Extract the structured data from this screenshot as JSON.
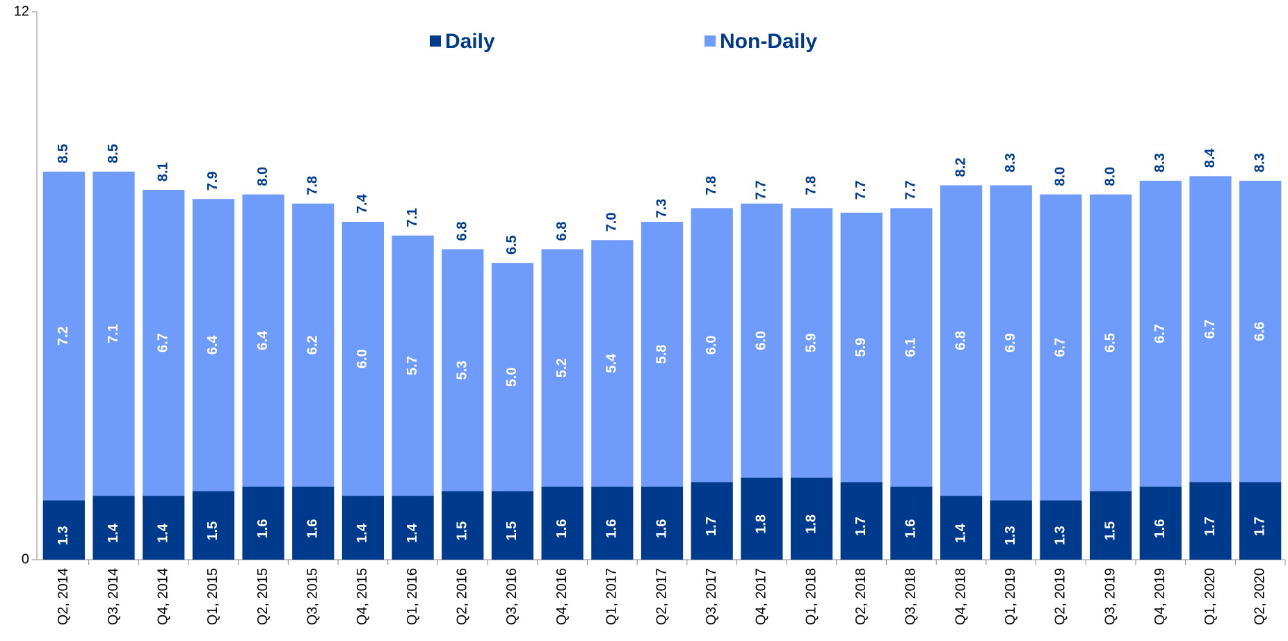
{
  "chart_data": {
    "type": "stacked_bar",
    "categories": [
      "Q2, 2014",
      "Q3, 2014",
      "Q4, 2014",
      "Q1, 2015",
      "Q2, 2015",
      "Q3, 2015",
      "Q4, 2015",
      "Q1, 2016",
      "Q2, 2016",
      "Q3, 2016",
      "Q4, 2016",
      "Q1, 2017",
      "Q2, 2017",
      "Q3, 2017",
      "Q4, 2017",
      "Q1, 2018",
      "Q2, 2018",
      "Q3, 2018",
      "Q4, 2018",
      "Q1, 2019",
      "Q2, 2019",
      "Q3, 2019",
      "Q4, 2019",
      "Q1, 2020",
      "Q2, 2020"
    ],
    "series": [
      {
        "name": "Daily",
        "color": "#003a8c",
        "values": [
          1.3,
          1.4,
          1.4,
          1.5,
          1.6,
          1.6,
          1.4,
          1.4,
          1.5,
          1.5,
          1.6,
          1.6,
          1.6,
          1.7,
          1.8,
          1.8,
          1.7,
          1.6,
          1.4,
          1.3,
          1.3,
          1.5,
          1.6,
          1.7,
          1.7
        ],
        "value_labels": [
          "1.3",
          "1.4",
          "1.4",
          "1.5",
          "1.6",
          "1.6",
          "1.4",
          "1.4",
          "1.5",
          "1.5",
          "1.6",
          "1.6",
          "1.6",
          "1.7",
          "1.8",
          "1.8",
          "1.7",
          "1.6",
          "1.4",
          "1.3",
          "1.3",
          "1.5",
          "1.6",
          "1.7",
          "1.7"
        ]
      },
      {
        "name": "Non-Daily",
        "color": "#6f9bfb",
        "values": [
          7.2,
          7.1,
          6.7,
          6.4,
          6.4,
          6.2,
          6.0,
          5.7,
          5.3,
          5.0,
          5.2,
          5.4,
          5.8,
          6.0,
          6.0,
          5.9,
          5.9,
          6.1,
          6.8,
          6.9,
          6.7,
          6.5,
          6.7,
          6.7,
          6.6
        ],
        "value_labels": [
          "7.2",
          "7.1",
          "6.7",
          "6.4",
          "6.4",
          "6.2",
          "6.0",
          "5.7",
          "5.3",
          "5.0",
          "5.2",
          "5.4",
          "5.8",
          "6.0",
          "6.0",
          "5.9",
          "5.9",
          "6.1",
          "6.8",
          "6.9",
          "6.7",
          "6.5",
          "6.7",
          "6.7",
          "6.6"
        ]
      }
    ],
    "totals": {
      "values": [
        8.5,
        8.5,
        8.1,
        7.9,
        8.0,
        7.8,
        7.4,
        7.1,
        6.8,
        6.5,
        6.8,
        7.0,
        7.3,
        7.8,
        7.7,
        7.8,
        7.7,
        7.7,
        8.2,
        8.3,
        8.0,
        8.0,
        8.3,
        8.4,
        8.3
      ],
      "value_labels": [
        "8.5",
        "8.5",
        "8.1",
        "7.9",
        "8.0",
        "7.8",
        "7.4",
        "7.1",
        "6.8",
        "6.5",
        "6.8",
        "7.0",
        "7.3",
        "7.8",
        "7.7",
        "7.8",
        "7.7",
        "7.7",
        "8.2",
        "8.3",
        "8.0",
        "8.0",
        "8.3",
        "8.4",
        "8.3"
      ]
    },
    "ylim": [
      0,
      12
    ],
    "yticks": [
      0,
      12
    ],
    "grid": false
  }
}
